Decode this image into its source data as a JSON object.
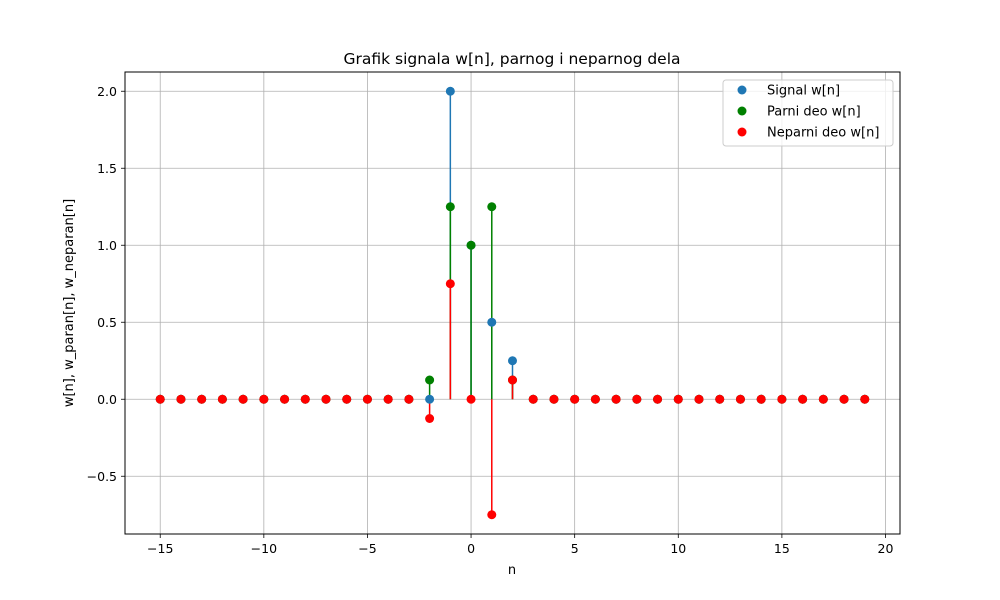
{
  "chart_data": {
    "type": "stem",
    "title": "Grafik signala w[n], parnog i neparnog dela",
    "xlabel": "n",
    "ylabel": "w[n], w_paran[n], w_neparan[n]",
    "xlim": [
      -16.7,
      20.7
    ],
    "ylim": [
      -0.875,
      2.125
    ],
    "xticks": [
      -15,
      -10,
      -5,
      0,
      5,
      10,
      15,
      20
    ],
    "xtick_labels": [
      "−15",
      "−10",
      "−5",
      "0",
      "5",
      "10",
      "15",
      "20"
    ],
    "yticks": [
      -0.5,
      0.0,
      0.5,
      1.0,
      1.5,
      2.0
    ],
    "ytick_labels": [
      "−0.5",
      "0.0",
      "0.5",
      "1.0",
      "1.5",
      "2.0"
    ],
    "grid": true,
    "legend_position": "top-right",
    "x": [
      -15,
      -14,
      -13,
      -12,
      -11,
      -10,
      -9,
      -8,
      -7,
      -6,
      -5,
      -4,
      -3,
      -2,
      -1,
      0,
      1,
      2,
      3,
      4,
      5,
      6,
      7,
      8,
      9,
      10,
      11,
      12,
      13,
      14,
      15,
      16,
      17,
      18,
      19
    ],
    "series": [
      {
        "name": "Signal w[n]",
        "color": "#1f77b4",
        "values": [
          0,
          0,
          0,
          0,
          0,
          0,
          0,
          0,
          0,
          0,
          0,
          0,
          0,
          0,
          2.0,
          1.0,
          0.5,
          0.25,
          0,
          0,
          0,
          0,
          0,
          0,
          0,
          0,
          0,
          0,
          0,
          0,
          0,
          0,
          0,
          0,
          0
        ]
      },
      {
        "name": "Parni deo w[n]",
        "color": "#008000",
        "values": [
          0,
          0,
          0,
          0,
          0,
          0,
          0,
          0,
          0,
          0,
          0,
          0,
          0,
          0.125,
          1.25,
          1.0,
          1.25,
          0.125,
          0,
          0,
          0,
          0,
          0,
          0,
          0,
          0,
          0,
          0,
          0,
          0,
          0,
          0,
          0,
          0,
          0
        ]
      },
      {
        "name": "Neparni deo w[n]",
        "color": "#ff0000",
        "values": [
          0,
          0,
          0,
          0,
          0,
          0,
          0,
          0,
          0,
          0,
          0,
          0,
          0,
          -0.125,
          0.75,
          0,
          -0.75,
          0.125,
          0,
          0,
          0,
          0,
          0,
          0,
          0,
          0,
          0,
          0,
          0,
          0,
          0,
          0,
          0,
          0,
          0
        ]
      }
    ]
  }
}
